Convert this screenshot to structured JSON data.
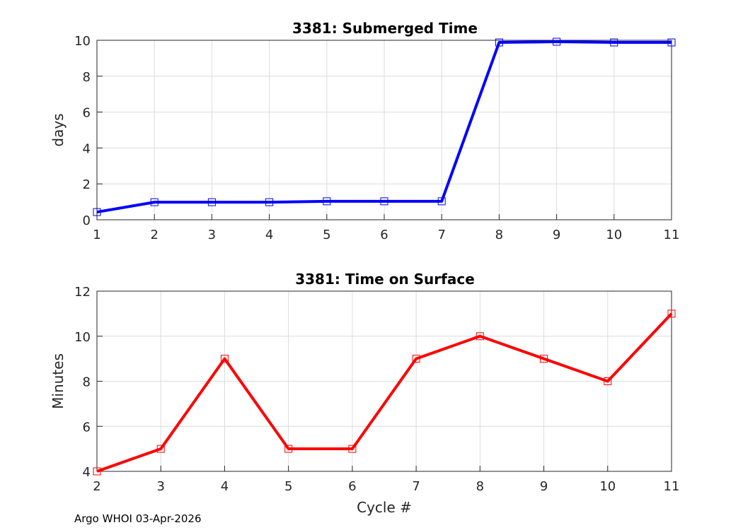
{
  "chart_data": [
    {
      "type": "line",
      "title": "3381: Submerged Time",
      "xlabel": "",
      "ylabel": "days",
      "xlim": [
        1,
        11
      ],
      "ylim": [
        0,
        10
      ],
      "xticks": [
        1,
        2,
        3,
        4,
        5,
        6,
        7,
        8,
        9,
        10,
        11
      ],
      "yticks": [
        0,
        2,
        4,
        6,
        8,
        10
      ],
      "grid": true,
      "color": "#0000ff",
      "marker": "square",
      "x": [
        1,
        2,
        3,
        4,
        5,
        6,
        7,
        8,
        9,
        10,
        11
      ],
      "y": [
        0.43,
        0.98,
        0.98,
        0.98,
        1.03,
        1.03,
        1.03,
        9.88,
        9.92,
        9.88,
        9.88
      ]
    },
    {
      "type": "line",
      "title": "3381: Time on Surface",
      "xlabel": "Cycle #",
      "ylabel": "Minutes",
      "xlim": [
        2,
        11
      ],
      "ylim": [
        4,
        12
      ],
      "xticks": [
        2,
        3,
        4,
        5,
        6,
        7,
        8,
        9,
        10,
        11
      ],
      "yticks": [
        4,
        6,
        8,
        10,
        12
      ],
      "grid": true,
      "color": "#ff0000",
      "marker": "square",
      "x": [
        2,
        3,
        4,
        5,
        6,
        7,
        8,
        9,
        10,
        11
      ],
      "y": [
        4,
        5,
        9,
        5,
        5,
        9,
        10,
        9,
        8,
        11
      ]
    }
  ],
  "footer": "Argo WHOI 03-Apr-2026"
}
